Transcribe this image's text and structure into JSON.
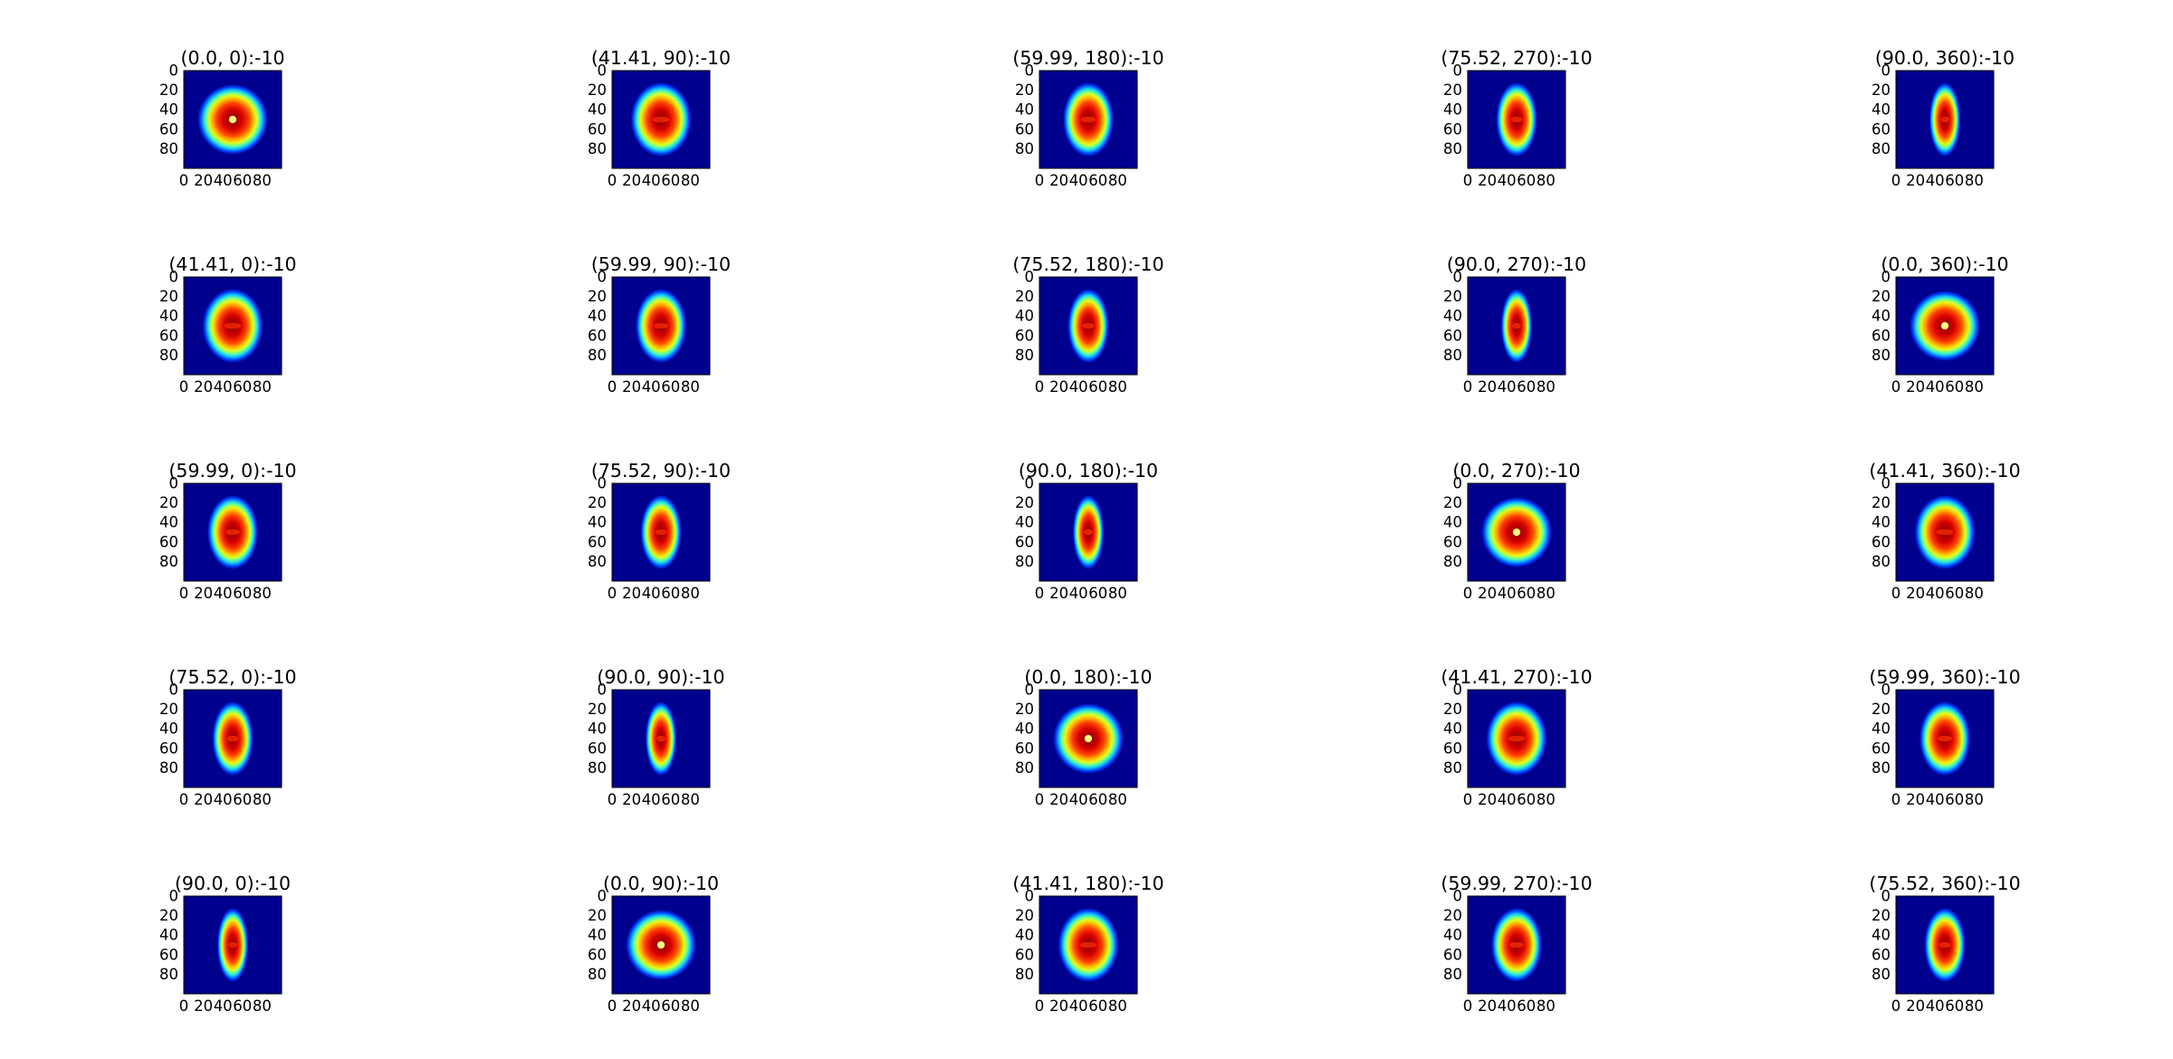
{
  "chart_data": {
    "type": "heatmap",
    "colormap": "jet",
    "grid": false,
    "layout": "5 rows x 5 columns",
    "image_size": [
      100,
      100
    ],
    "xticks": [
      "0",
      "20",
      "40",
      "60",
      "80"
    ],
    "yticks": [
      "0",
      "20",
      "40",
      "60",
      "80"
    ],
    "panels": [
      {
        "title": "(0.0, 0):-10",
        "theta": 0.0,
        "phi": 0
      },
      {
        "title": "(41.41, 90):-10",
        "theta": 41.41,
        "phi": 90
      },
      {
        "title": "(59.99, 180):-10",
        "theta": 59.99,
        "phi": 180
      },
      {
        "title": "(75.52, 270):-10",
        "theta": 75.52,
        "phi": 270
      },
      {
        "title": "(90.0, 360):-10",
        "theta": 90.0,
        "phi": 360
      },
      {
        "title": "(41.41, 0):-10",
        "theta": 41.41,
        "phi": 0
      },
      {
        "title": "(59.99, 90):-10",
        "theta": 59.99,
        "phi": 90
      },
      {
        "title": "(75.52, 180):-10",
        "theta": 75.52,
        "phi": 180
      },
      {
        "title": "(90.0, 270):-10",
        "theta": 90.0,
        "phi": 270
      },
      {
        "title": "(0.0, 360):-10",
        "theta": 0.0,
        "phi": 360
      },
      {
        "title": "(59.99, 0):-10",
        "theta": 59.99,
        "phi": 0
      },
      {
        "title": "(75.52, 90):-10",
        "theta": 75.52,
        "phi": 90
      },
      {
        "title": "(90.0, 180):-10",
        "theta": 90.0,
        "phi": 180
      },
      {
        "title": "(0.0, 270):-10",
        "theta": 0.0,
        "phi": 270
      },
      {
        "title": "(41.41, 360):-10",
        "theta": 41.41,
        "phi": 360
      },
      {
        "title": "(75.52, 0):-10",
        "theta": 75.52,
        "phi": 0
      },
      {
        "title": "(90.0, 90):-10",
        "theta": 90.0,
        "phi": 90
      },
      {
        "title": "(0.0, 180):-10",
        "theta": 0.0,
        "phi": 180
      },
      {
        "title": "(41.41, 270):-10",
        "theta": 41.41,
        "phi": 270
      },
      {
        "title": "(59.99, 360):-10",
        "theta": 59.99,
        "phi": 360
      },
      {
        "title": "(90.0, 0):-10",
        "theta": 90.0,
        "phi": 0
      },
      {
        "title": "(0.0, 90):-10",
        "theta": 0.0,
        "phi": 90
      },
      {
        "title": "(41.41, 180):-10",
        "theta": 41.41,
        "phi": 180
      },
      {
        "title": "(59.99, 270):-10",
        "theta": 59.99,
        "phi": 270
      },
      {
        "title": "(75.52, 360):-10",
        "theta": 75.52,
        "phi": 360
      }
    ]
  }
}
